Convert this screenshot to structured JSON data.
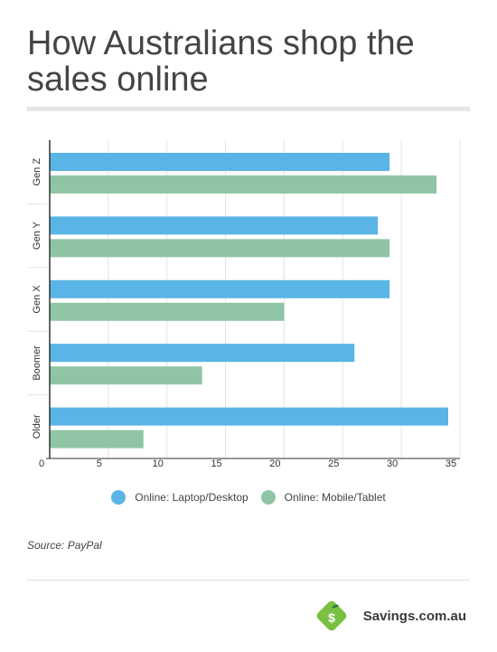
{
  "header": {
    "title": "How Australians shop the sales online"
  },
  "source": "Source: PayPal",
  "brand": {
    "name": "Savings.com.au",
    "logo_letter": "$",
    "logo_color": "#7ac143",
    "leaf_color": "#2e7d32"
  },
  "colors": {
    "desktop": "#5ab4e5",
    "mobile": "#8fc5a5",
    "grid": "#e3e3e3",
    "axis": "#333333"
  },
  "chart_data": {
    "type": "bar",
    "orientation": "horizontal",
    "title": "How Australians shop the sales online",
    "categories": [
      "Gen Z",
      "Gen Y",
      "Gen X",
      "Boomer",
      "Older"
    ],
    "series": [
      {
        "name": "Online: Laptop/Desktop",
        "values": [
          29,
          28,
          29,
          26,
          34
        ]
      },
      {
        "name": "Online: Mobile/Tablet",
        "values": [
          33,
          29,
          20,
          13,
          8
        ]
      }
    ],
    "xlim": [
      0,
      35
    ],
    "xticks": [
      0,
      5,
      10,
      15,
      20,
      25,
      30,
      35
    ],
    "grid": true,
    "legend_position": "bottom"
  }
}
